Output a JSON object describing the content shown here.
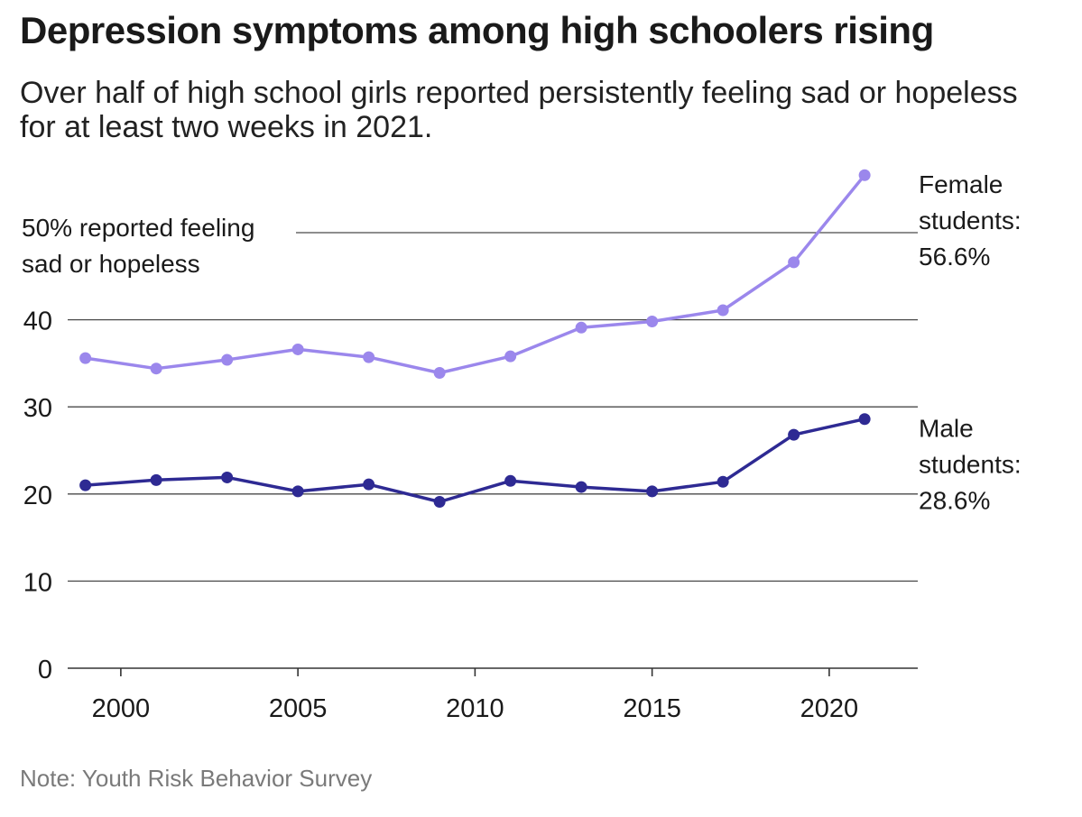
{
  "chart_data": {
    "type": "line",
    "title": "Depression symptoms among high schoolers rising",
    "subtitle": "Over half of high school girls reported persistently feeling sad or hopeless for at least two weeks in 2021.",
    "note": "Note: Youth Risk Behavior Survey",
    "xlim": [
      1998.5,
      2022.5
    ],
    "ylim": [
      0,
      58
    ],
    "x_ticks": [
      2000,
      2005,
      2010,
      2015,
      2020
    ],
    "y_ticks": [
      0,
      10,
      20,
      30,
      40
    ],
    "grid": true,
    "reference_line": {
      "value": 50,
      "label_lines": [
        "50% reported feeling",
        "sad or hopeless"
      ]
    },
    "x": [
      1999,
      2001,
      2003,
      2005,
      2007,
      2009,
      2011,
      2013,
      2015,
      2017,
      2019,
      2021
    ],
    "series": [
      {
        "label_lines": [
          "Female",
          "students:",
          "56.6%"
        ],
        "color": "#9b87ec",
        "values": [
          35.6,
          34.4,
          35.4,
          36.6,
          35.7,
          33.9,
          35.8,
          39.1,
          39.8,
          41.1,
          46.6,
          56.6
        ]
      },
      {
        "label_lines": [
          "Male",
          "students:",
          "28.6%"
        ],
        "color": "#2e2a93",
        "values": [
          21.0,
          21.6,
          21.9,
          20.3,
          21.1,
          19.1,
          21.5,
          20.8,
          20.3,
          21.4,
          26.8,
          28.6
        ]
      }
    ]
  }
}
